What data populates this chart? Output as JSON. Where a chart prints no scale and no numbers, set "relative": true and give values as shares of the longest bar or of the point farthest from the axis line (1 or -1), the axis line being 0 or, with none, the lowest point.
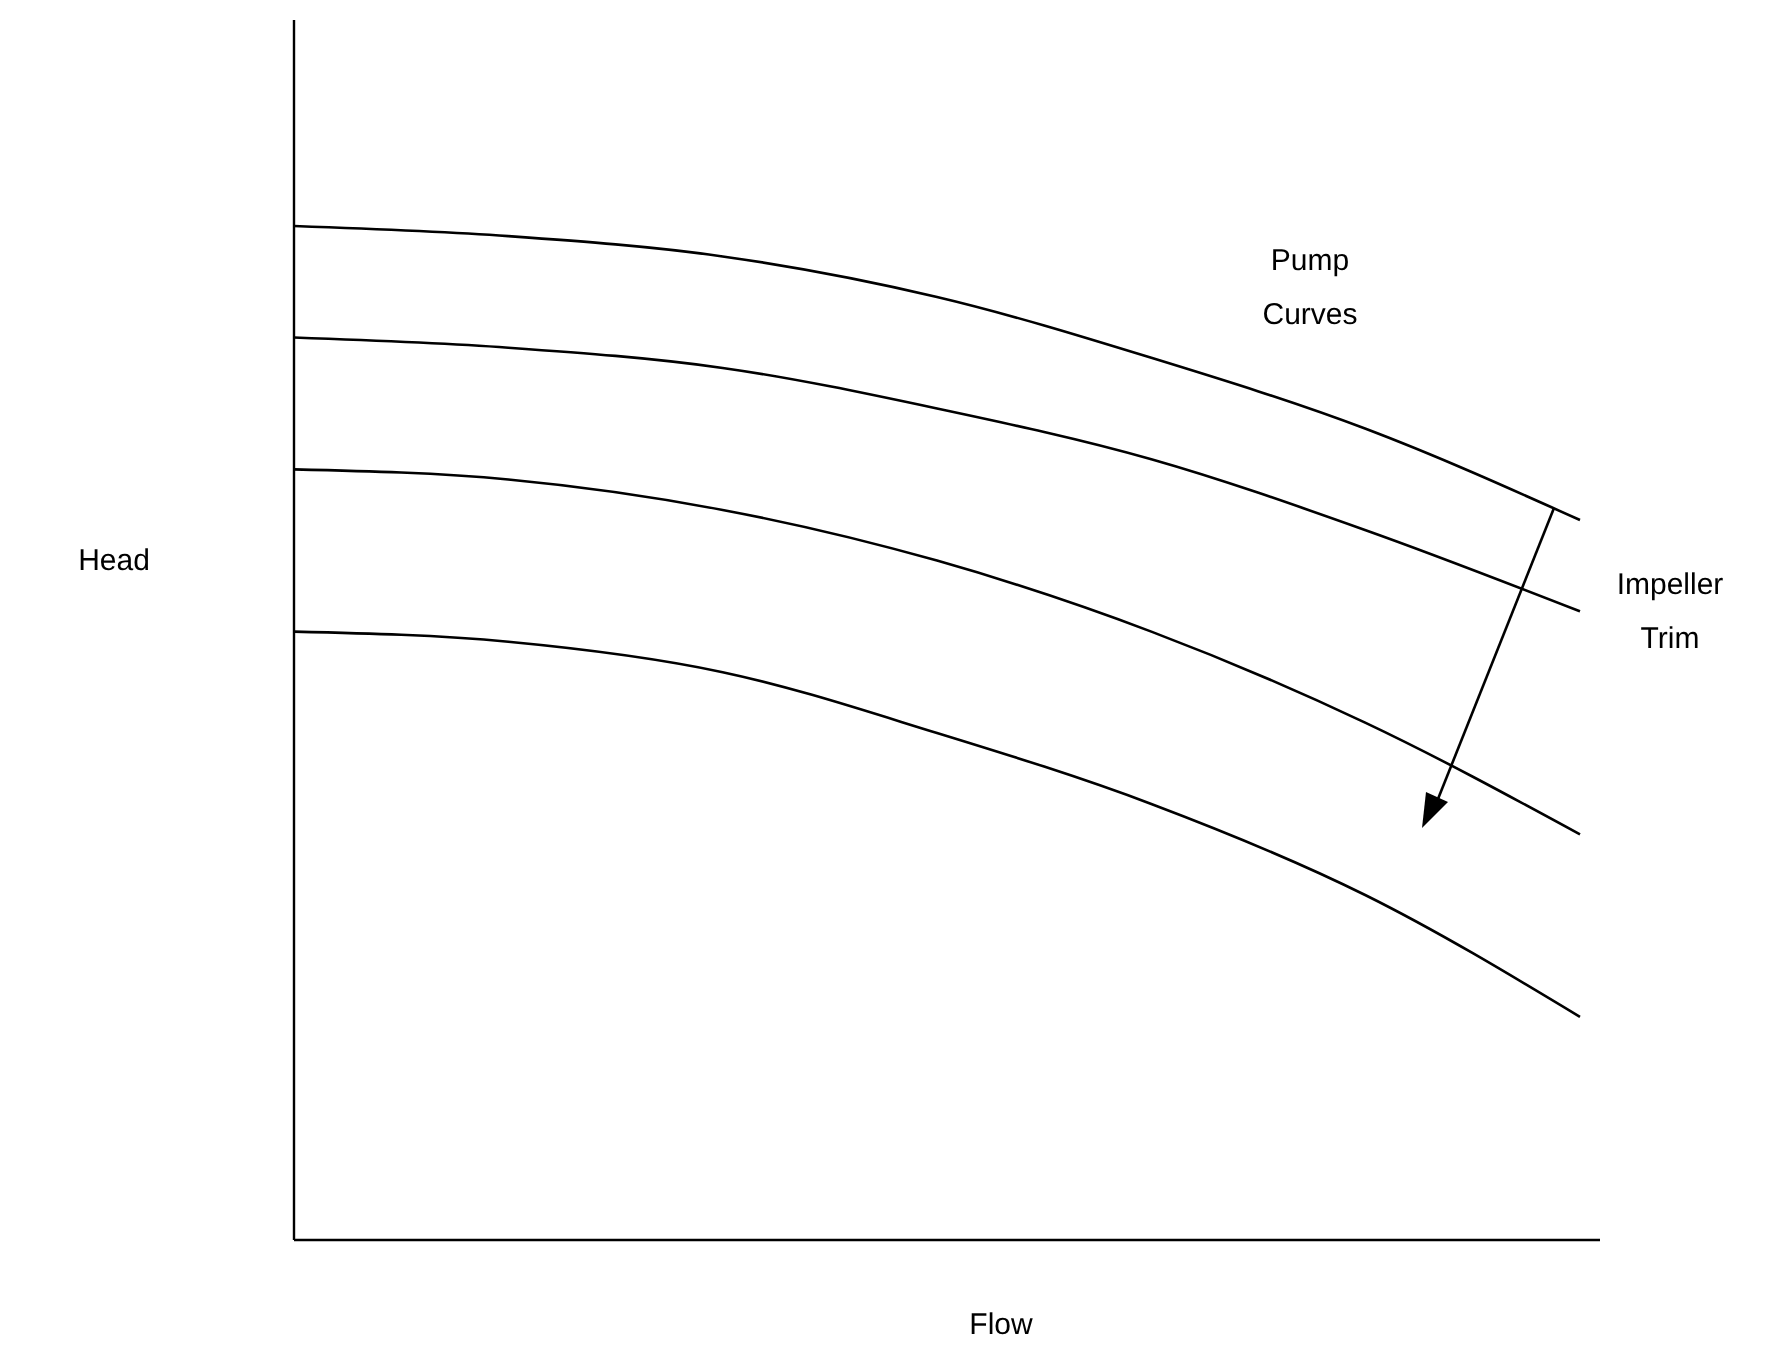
{
  "chart_data": {
    "type": "line",
    "relative": true,
    "xlabel": "Flow",
    "ylabel": "Head",
    "categories": [
      null,
      null,
      null,
      null,
      null,
      null,
      null
    ],
    "series": [
      {
        "color": "#000000",
        "values": [
          1,
          0.99,
          0.97,
          0.93,
          0.87,
          0.8,
          0.71
        ]
      },
      {
        "color": "#000000",
        "values": [
          0.89,
          0.88,
          0.86,
          0.82,
          0.77,
          0.7,
          0.62
        ]
      },
      {
        "color": "#000000",
        "values": [
          0.76,
          0.75,
          0.72,
          0.67,
          0.6,
          0.51,
          0.4
        ]
      },
      {
        "color": "#000000",
        "values": [
          0.6,
          0.59,
          0.56,
          0.5,
          0.43,
          0.34,
          0.22
        ]
      }
    ],
    "annotations": [
      "Pump Curves",
      "Impeller Trim"
    ]
  }
}
